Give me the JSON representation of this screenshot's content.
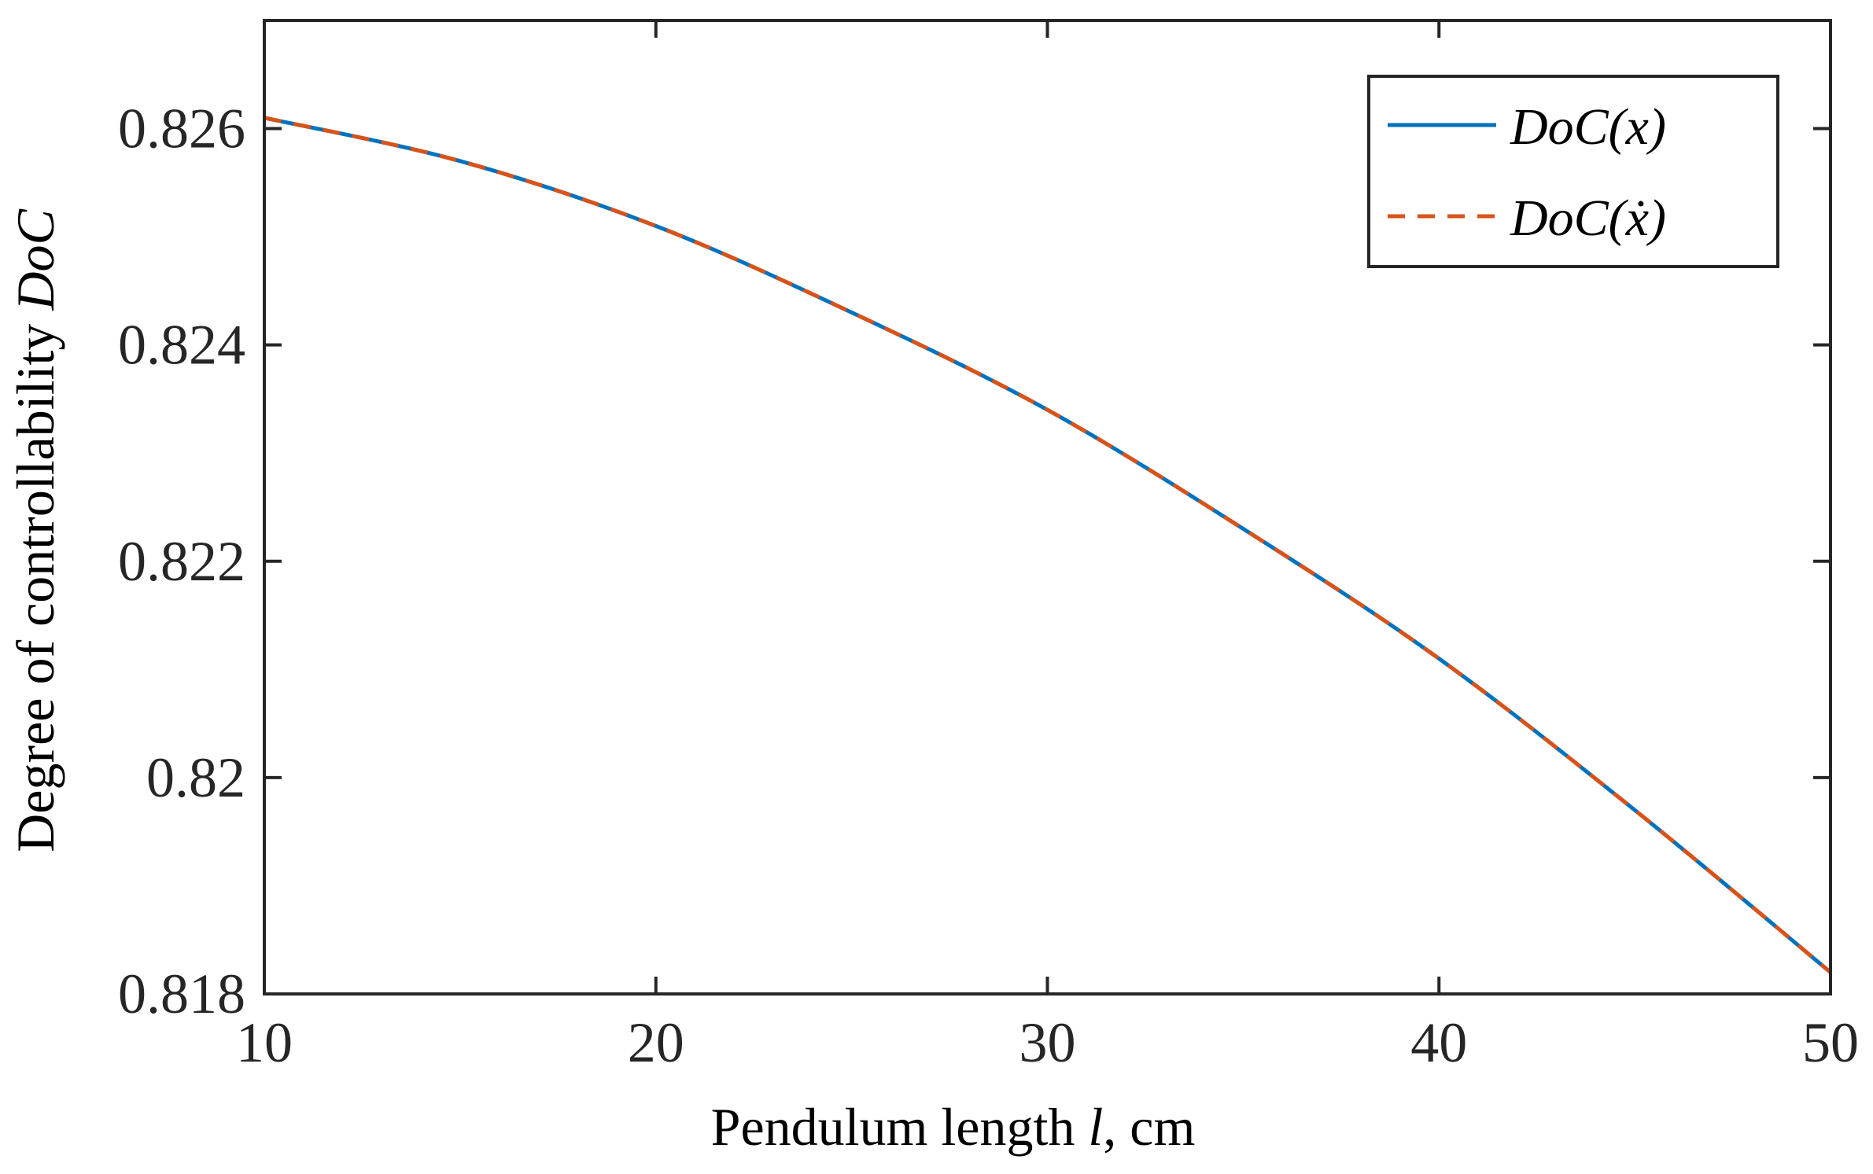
{
  "chart_data": {
    "type": "line",
    "xlabel": {
      "prefix": "Pendulum length ",
      "var": "l",
      "suffix": ", cm"
    },
    "ylabel": {
      "prefix": "Degree of controllability ",
      "var": "DoC"
    },
    "xlim": [
      10,
      50
    ],
    "ylim": [
      0.818,
      0.827
    ],
    "x_ticks": [
      10,
      20,
      30,
      40,
      50
    ],
    "x_tick_labels": [
      "10",
      "20",
      "30",
      "40",
      "50"
    ],
    "y_ticks": [
      0.818,
      0.82,
      0.822,
      0.824,
      0.826
    ],
    "y_tick_labels": [
      "0.818",
      "0.82",
      "0.822",
      "0.824",
      "0.826"
    ],
    "grid": false,
    "legend_position": "top-right",
    "series": [
      {
        "name": "DoC(x)",
        "color": "#0072BD",
        "style": "solid",
        "x": [
          10,
          15,
          20,
          25,
          30,
          35,
          40,
          45,
          50
        ],
        "y": [
          0.8261,
          0.8257,
          0.8251,
          0.8243,
          0.8234,
          0.8223,
          0.8211,
          0.8197,
          0.8182
        ]
      },
      {
        "name": "DoC(ẋ)",
        "color": "#D95319",
        "style": "dashed",
        "x": [
          10,
          15,
          20,
          25,
          30,
          35,
          40,
          45,
          50
        ],
        "y": [
          0.8261,
          0.8257,
          0.8251,
          0.8243,
          0.8234,
          0.8223,
          0.8211,
          0.8197,
          0.8182
        ]
      }
    ]
  }
}
